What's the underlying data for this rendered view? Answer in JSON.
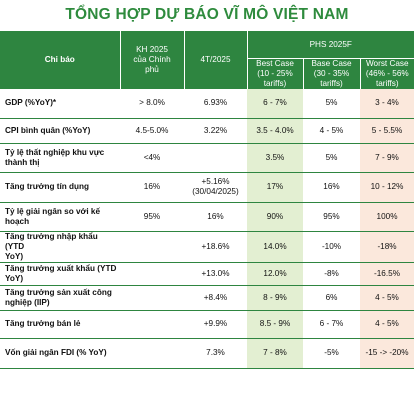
{
  "title": "TỔNG HỢP DỰ BÁO VĨ MÔ VIỆT NAM",
  "header": {
    "indicator": "Chỉ báo",
    "plan": "KH 2025\ncủa Chính\nphủ",
    "apr": "4T/2025",
    "phs": "PHS 2025F",
    "best": "Best Case\n(10 - 25%\ntariffs)",
    "base": "Base Case\n(30 - 35%\ntariffs)",
    "worst": "Worst Case\n(46% - 56%\ntariffs)"
  },
  "rows": [
    {
      "label": "GDP (%YoY)*",
      "plan": "> 8.0%",
      "apr": "6.93%",
      "best": "6 - 7%",
      "base": "5%",
      "worst": "3 - 4%"
    },
    {
      "label": "CPI bình quân (%YoY)",
      "plan": "4.5-5.0%",
      "apr": "3.22%",
      "best": "3.5 - 4.0%",
      "base": "4 - 5%",
      "worst": "5 - 5.5%"
    },
    {
      "label": "Tỷ lệ thất nghiệp khu vực\nthành thị",
      "plan": "<4%",
      "apr": "",
      "best": "3.5%",
      "base": "5%",
      "worst": "7 - 9%"
    },
    {
      "label": "Tăng trưởng tín dụng",
      "plan": "16%",
      "apr": "+5.16%\n(30/04/2025)",
      "best": "17%",
      "base": "16%",
      "worst": "10 - 12%"
    },
    {
      "label": "Tỷ lệ giải ngân so với kế\nhoạch",
      "plan": "95%",
      "apr": "16%",
      "best": "90%",
      "base": "95%",
      "worst": "100%"
    },
    {
      "label": "Tăng trưởng nhập khẩu (YTD\nYoY)",
      "plan": "",
      "apr": "+18.6%",
      "best": "14.0%",
      "base": "-10%",
      "worst": "-18%"
    },
    {
      "label": "Tăng trưởng xuất khẩu (YTD\nYoY)",
      "plan": "",
      "apr": "+13.0%",
      "best": "12.0%",
      "base": "-8%",
      "worst": "-16.5%"
    },
    {
      "label": "Tăng trưởng sản xuất công\nnghiệp (IIP)",
      "plan": "",
      "apr": "+8.4%",
      "best": "8 - 9%",
      "base": "6%",
      "worst": "4 - 5%"
    },
    {
      "label": "Tăng trưởng bán lẻ",
      "plan": "",
      "apr": "+9.9%",
      "best": "8.5 - 9%",
      "base": "6 - 7%",
      "worst": "4 - 5%"
    },
    {
      "label": "Vốn giải ngân FDI (% YoY)",
      "plan": "",
      "apr": "7.3%",
      "best": "7 - 8%",
      "base": "-5%",
      "worst": "-15 -> -20%"
    }
  ]
}
